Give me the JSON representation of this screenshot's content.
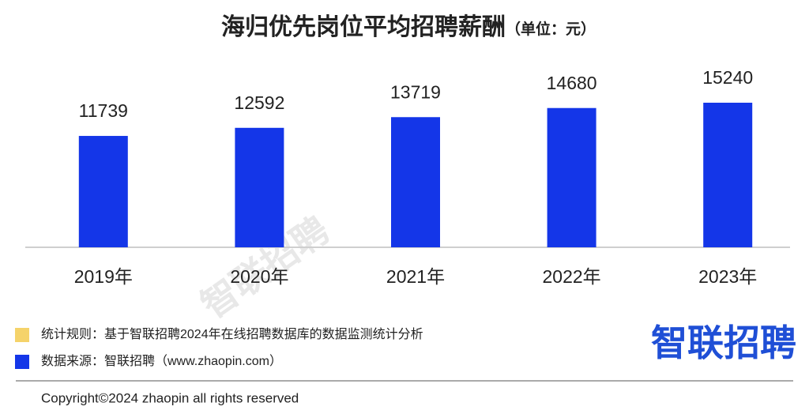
{
  "chart_data": {
    "type": "bar",
    "title": "海归优先岗位平均招聘薪酬",
    "subtitle": "（单位：元）",
    "categories": [
      "2019年",
      "2020年",
      "2021年",
      "2022年",
      "2023年"
    ],
    "values": [
      11739,
      12592,
      13719,
      14680,
      15240
    ],
    "color": "#1436e8"
  },
  "notes": [
    {
      "color": "#f5d36a",
      "text": "统计规则：基于智联招聘2024年在线招聘数据库的数据监测统计分析"
    },
    {
      "color": "#1436e8",
      "text": "数据来源：智联招聘（www.zhaopin.com）"
    }
  ],
  "logo": "智联招聘",
  "watermark": "智联招聘",
  "copyright": "Copyright©2024 zhaopin all rights reserved"
}
